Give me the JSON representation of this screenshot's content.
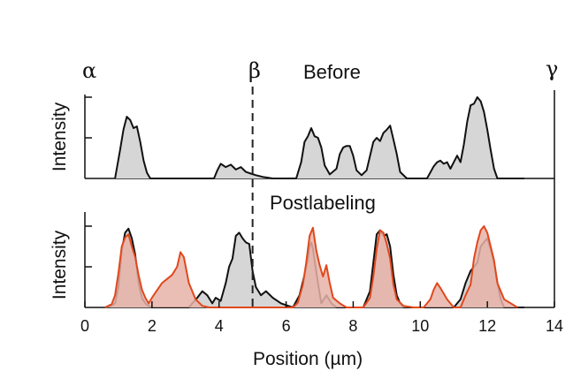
{
  "chart_data": {
    "type": "area",
    "xlabel": "Position (µm)",
    "ylabel": "Intensity",
    "xlim": [
      0,
      14
    ],
    "x_ticks": [
      0,
      2,
      4,
      6,
      8,
      10,
      12,
      14
    ],
    "ylim": [
      0,
      1
    ],
    "markers": [
      {
        "label": "α",
        "x": 0
      },
      {
        "label": "β",
        "x": 5
      },
      {
        "label": "γ",
        "x": 14
      }
    ],
    "panels": [
      {
        "title": "Before",
        "ylabel": "Intensity",
        "series": [
          {
            "color": "#111111",
            "fill": "#d6d6d6",
            "x": [
              0.9,
              1.05,
              1.15,
              1.25,
              1.35,
              1.45,
              1.55,
              1.65,
              1.75,
              1.85,
              1.95,
              3.85,
              3.95,
              4.05,
              4.2,
              4.35,
              4.5,
              4.65,
              4.8,
              4.95,
              5.1,
              5.3,
              5.6,
              6.3,
              6.45,
              6.55,
              6.65,
              6.75,
              6.85,
              6.95,
              7.05,
              7.15,
              7.3,
              7.5,
              7.6,
              7.7,
              7.8,
              7.9,
              8.0,
              8.1,
              8.25,
              8.4,
              8.6,
              8.7,
              8.8,
              8.9,
              9.0,
              9.1,
              9.2,
              9.3,
              9.4,
              9.6,
              10.2,
              10.4,
              10.5,
              10.6,
              10.7,
              10.8,
              10.9,
              11.0,
              11.1,
              11.2,
              11.3,
              11.4,
              11.5,
              11.6,
              11.7,
              11.8,
              11.9,
              12.0,
              12.1,
              12.2,
              12.3,
              12.45,
              12.6,
              13.1
            ],
            "y": [
              0.0,
              0.35,
              0.6,
              0.76,
              0.72,
              0.62,
              0.64,
              0.45,
              0.22,
              0.07,
              0.0,
              0.0,
              0.1,
              0.18,
              0.14,
              0.17,
              0.11,
              0.14,
              0.08,
              0.06,
              0.04,
              0.02,
              0.0,
              0.0,
              0.2,
              0.45,
              0.52,
              0.62,
              0.52,
              0.5,
              0.38,
              0.16,
              0.05,
              0.12,
              0.3,
              0.38,
              0.4,
              0.4,
              0.28,
              0.1,
              0.04,
              0.1,
              0.45,
              0.5,
              0.46,
              0.56,
              0.6,
              0.65,
              0.48,
              0.3,
              0.08,
              0.0,
              0.0,
              0.15,
              0.2,
              0.22,
              0.18,
              0.2,
              0.12,
              0.2,
              0.28,
              0.2,
              0.42,
              0.7,
              0.9,
              0.92,
              1.0,
              0.95,
              0.82,
              0.6,
              0.35,
              0.12,
              0.0,
              0.0,
              0.0,
              0.0
            ]
          }
        ]
      },
      {
        "title": "Postlabeling",
        "ylabel": "Intensity",
        "series": [
          {
            "color": "#111111",
            "fill": "#d6d6d6",
            "x": [
              0.7,
              0.9,
              1.0,
              1.1,
              1.2,
              1.3,
              1.4,
              1.5,
              1.6,
              1.7,
              1.8,
              1.9,
              2.0,
              2.1,
              3.1,
              3.2,
              3.35,
              3.5,
              3.65,
              3.8,
              3.9,
              4.05,
              4.2,
              4.3,
              4.4,
              4.5,
              4.6,
              4.7,
              4.8,
              4.9,
              5.0,
              5.1,
              5.25,
              5.4,
              5.6,
              5.85,
              6.2,
              6.4,
              6.55,
              6.65,
              6.7,
              6.75,
              6.8,
              6.85,
              6.95,
              7.05,
              7.2,
              7.35,
              7.5,
              8.3,
              8.5,
              8.6,
              8.7,
              8.8,
              8.9,
              9.0,
              9.1,
              9.2,
              9.3,
              9.4,
              9.5,
              11.0,
              11.2,
              11.35,
              11.5,
              11.6,
              11.7,
              11.8,
              11.9,
              12.0,
              12.1,
              12.2,
              12.3,
              12.4,
              12.5,
              13.1
            ],
            "y": [
              0.0,
              0.05,
              0.25,
              0.7,
              0.92,
              0.97,
              0.85,
              0.65,
              0.3,
              0.12,
              0.05,
              0.02,
              0.0,
              0.0,
              0.0,
              0.05,
              0.12,
              0.2,
              0.15,
              0.05,
              0.12,
              0.08,
              0.3,
              0.5,
              0.6,
              0.88,
              0.92,
              0.85,
              0.8,
              0.78,
              0.45,
              0.25,
              0.15,
              0.2,
              0.12,
              0.05,
              0.0,
              0.15,
              0.4,
              0.6,
              0.75,
              0.8,
              0.72,
              0.58,
              0.3,
              0.05,
              0.15,
              0.05,
              0.0,
              0.0,
              0.2,
              0.55,
              0.9,
              0.95,
              0.88,
              0.9,
              0.75,
              0.4,
              0.15,
              0.05,
              0.0,
              0.0,
              0.1,
              0.3,
              0.45,
              0.5,
              0.55,
              0.75,
              0.8,
              0.85,
              0.72,
              0.55,
              0.3,
              0.1,
              0.0,
              0.0
            ]
          },
          {
            "color": "#e0481c",
            "fill": "#e8b3a8",
            "x": [
              0.6,
              0.8,
              0.9,
              1.0,
              1.1,
              1.2,
              1.3,
              1.4,
              1.5,
              1.6,
              1.7,
              1.8,
              1.9,
              2.0,
              2.1,
              2.3,
              2.45,
              2.6,
              2.75,
              2.85,
              2.95,
              3.1,
              3.3,
              3.5,
              3.7,
              6.2,
              6.35,
              6.5,
              6.6,
              6.7,
              6.8,
              6.9,
              7.0,
              7.1,
              7.2,
              7.3,
              7.4,
              7.6,
              7.8,
              8.3,
              8.5,
              8.6,
              8.7,
              8.8,
              8.9,
              9.0,
              9.1,
              9.2,
              9.3,
              9.5,
              9.8,
              10.1,
              10.3,
              10.4,
              10.5,
              10.6,
              10.8,
              11.0,
              11.2,
              11.35,
              11.5,
              11.6,
              11.7,
              11.8,
              11.9,
              12.0,
              12.1,
              12.2,
              12.3,
              12.5,
              12.9
            ],
            "y": [
              0.0,
              0.04,
              0.15,
              0.42,
              0.75,
              0.86,
              0.9,
              0.75,
              0.62,
              0.4,
              0.22,
              0.12,
              0.05,
              0.12,
              0.18,
              0.3,
              0.35,
              0.4,
              0.5,
              0.68,
              0.62,
              0.3,
              0.1,
              0.02,
              0.0,
              0.0,
              0.06,
              0.28,
              0.55,
              0.88,
              0.98,
              0.7,
              0.52,
              0.38,
              0.52,
              0.3,
              0.12,
              0.05,
              0.0,
              0.0,
              0.12,
              0.38,
              0.72,
              0.95,
              0.92,
              0.78,
              0.6,
              0.28,
              0.1,
              0.02,
              0.0,
              0.0,
              0.1,
              0.22,
              0.3,
              0.24,
              0.1,
              0.0,
              0.0,
              0.15,
              0.28,
              0.6,
              0.8,
              0.95,
              1.0,
              0.92,
              0.75,
              0.58,
              0.3,
              0.1,
              0.0
            ]
          }
        ]
      }
    ]
  }
}
